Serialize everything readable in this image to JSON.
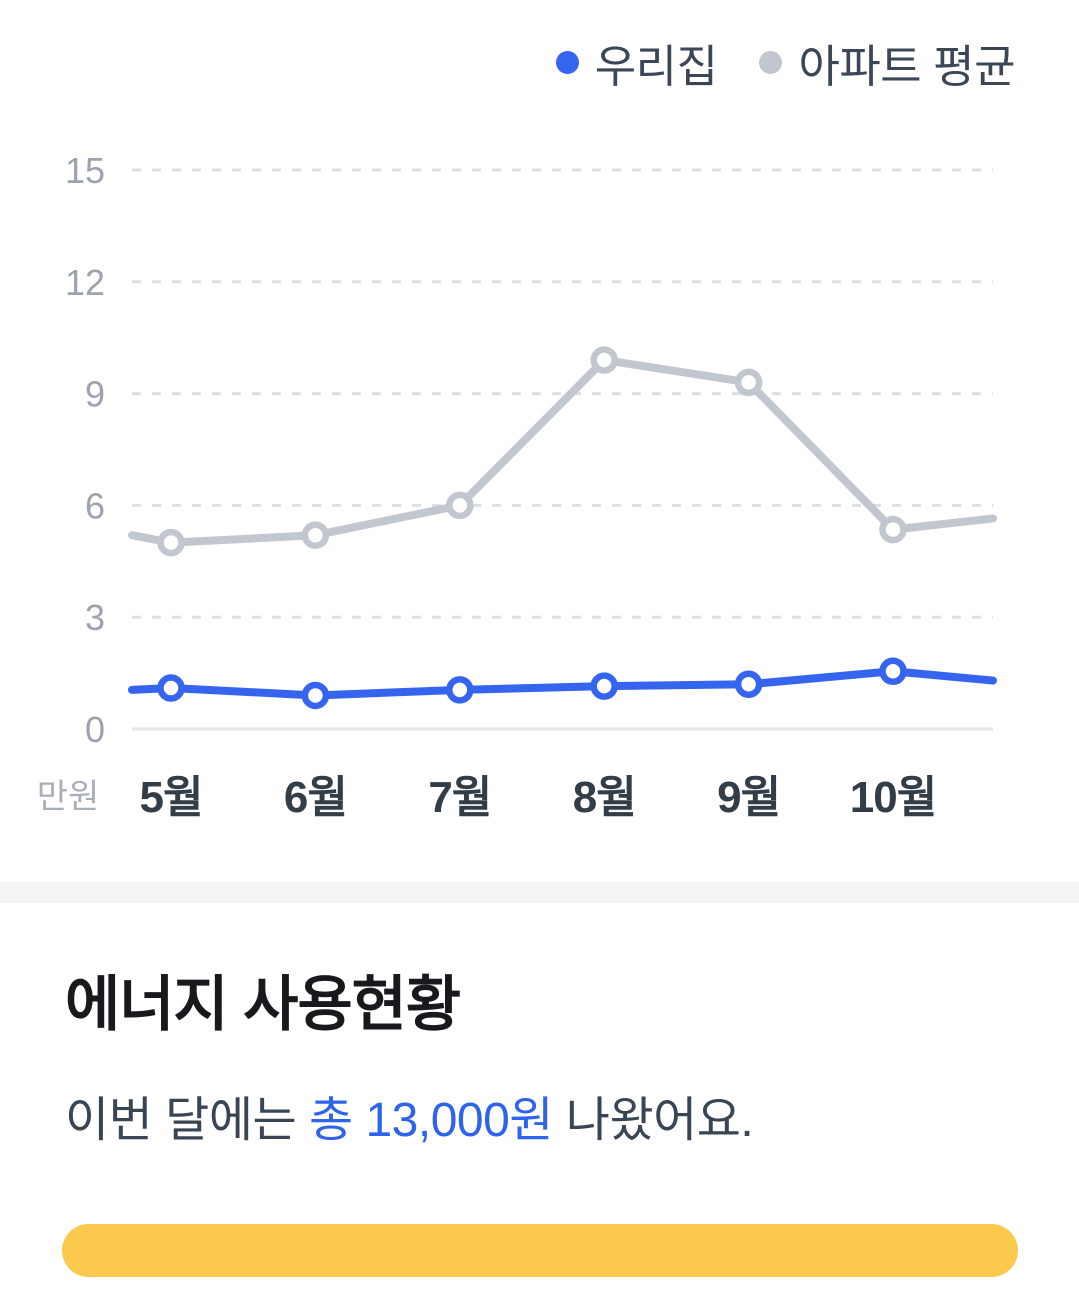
{
  "chart_data": {
    "type": "line",
    "title": "",
    "unit_label": "만원",
    "categories": [
      "5월",
      "6월",
      "7월",
      "8월",
      "9월",
      "10월"
    ],
    "y_ticks": [
      15,
      12,
      9,
      6,
      3,
      0
    ],
    "ylim": [
      0,
      15
    ],
    "grid": "dashed-horizontal",
    "legend_position": "top-right",
    "series": [
      {
        "name": "우리집",
        "color": "#3565ef",
        "values": [
          1.1,
          0.9,
          1.05,
          1.15,
          1.2,
          1.55
        ],
        "edge_start": 1.05,
        "edge_end": 1.3
      },
      {
        "name": "아파트 평균",
        "color": "#c2c6ce",
        "values": [
          5.0,
          5.2,
          6.0,
          9.9,
          9.3,
          5.35
        ],
        "edge_start": 5.2,
        "edge_end": 5.65
      }
    ],
    "colors": {
      "gridline": "#dcdfe4",
      "zero_line": "#e4e6ea",
      "y_tick_label": "#9ca3ae",
      "x_tick_label": "#333d48",
      "unit_label": "#a9afb8"
    }
  },
  "section": {
    "title": "에너지 사용현황",
    "subtitle_prefix": "이번 달에는 ",
    "subtitle_highlight": "총 13,000원",
    "subtitle_suffix": " 나왔어요.",
    "highlight_color": "#2e63ec"
  },
  "bottom_pill": {
    "color": "#fbc94d"
  }
}
